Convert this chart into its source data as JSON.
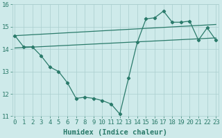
{
  "title": "",
  "xlabel": "Humidex (Indice chaleur)",
  "x": [
    0,
    1,
    2,
    3,
    4,
    5,
    6,
    7,
    8,
    9,
    10,
    11,
    12,
    13,
    14,
    15,
    16,
    17,
    18,
    19,
    20,
    21,
    22,
    23
  ],
  "line1_y": [
    14.6,
    14.1,
    14.1,
    13.7,
    13.2,
    13.0,
    12.5,
    11.8,
    11.85,
    11.8,
    11.7,
    11.55,
    11.1,
    12.7,
    14.3,
    15.35,
    15.4,
    15.7,
    15.2,
    15.2,
    15.25,
    14.4,
    14.95,
    14.4
  ],
  "trend1_x": [
    0,
    23
  ],
  "trend1_y": [
    14.6,
    15.1
  ],
  "trend2_x": [
    0,
    23
  ],
  "trend2_y": [
    14.05,
    14.5
  ],
  "line_color": "#2a7a6a",
  "bg_color": "#ceeaea",
  "grid_color": "#aacece",
  "ylim": [
    11,
    16
  ],
  "xlim": [
    -0.3,
    23.3
  ],
  "tick_fontsize": 6.5,
  "xlabel_fontsize": 7.5
}
